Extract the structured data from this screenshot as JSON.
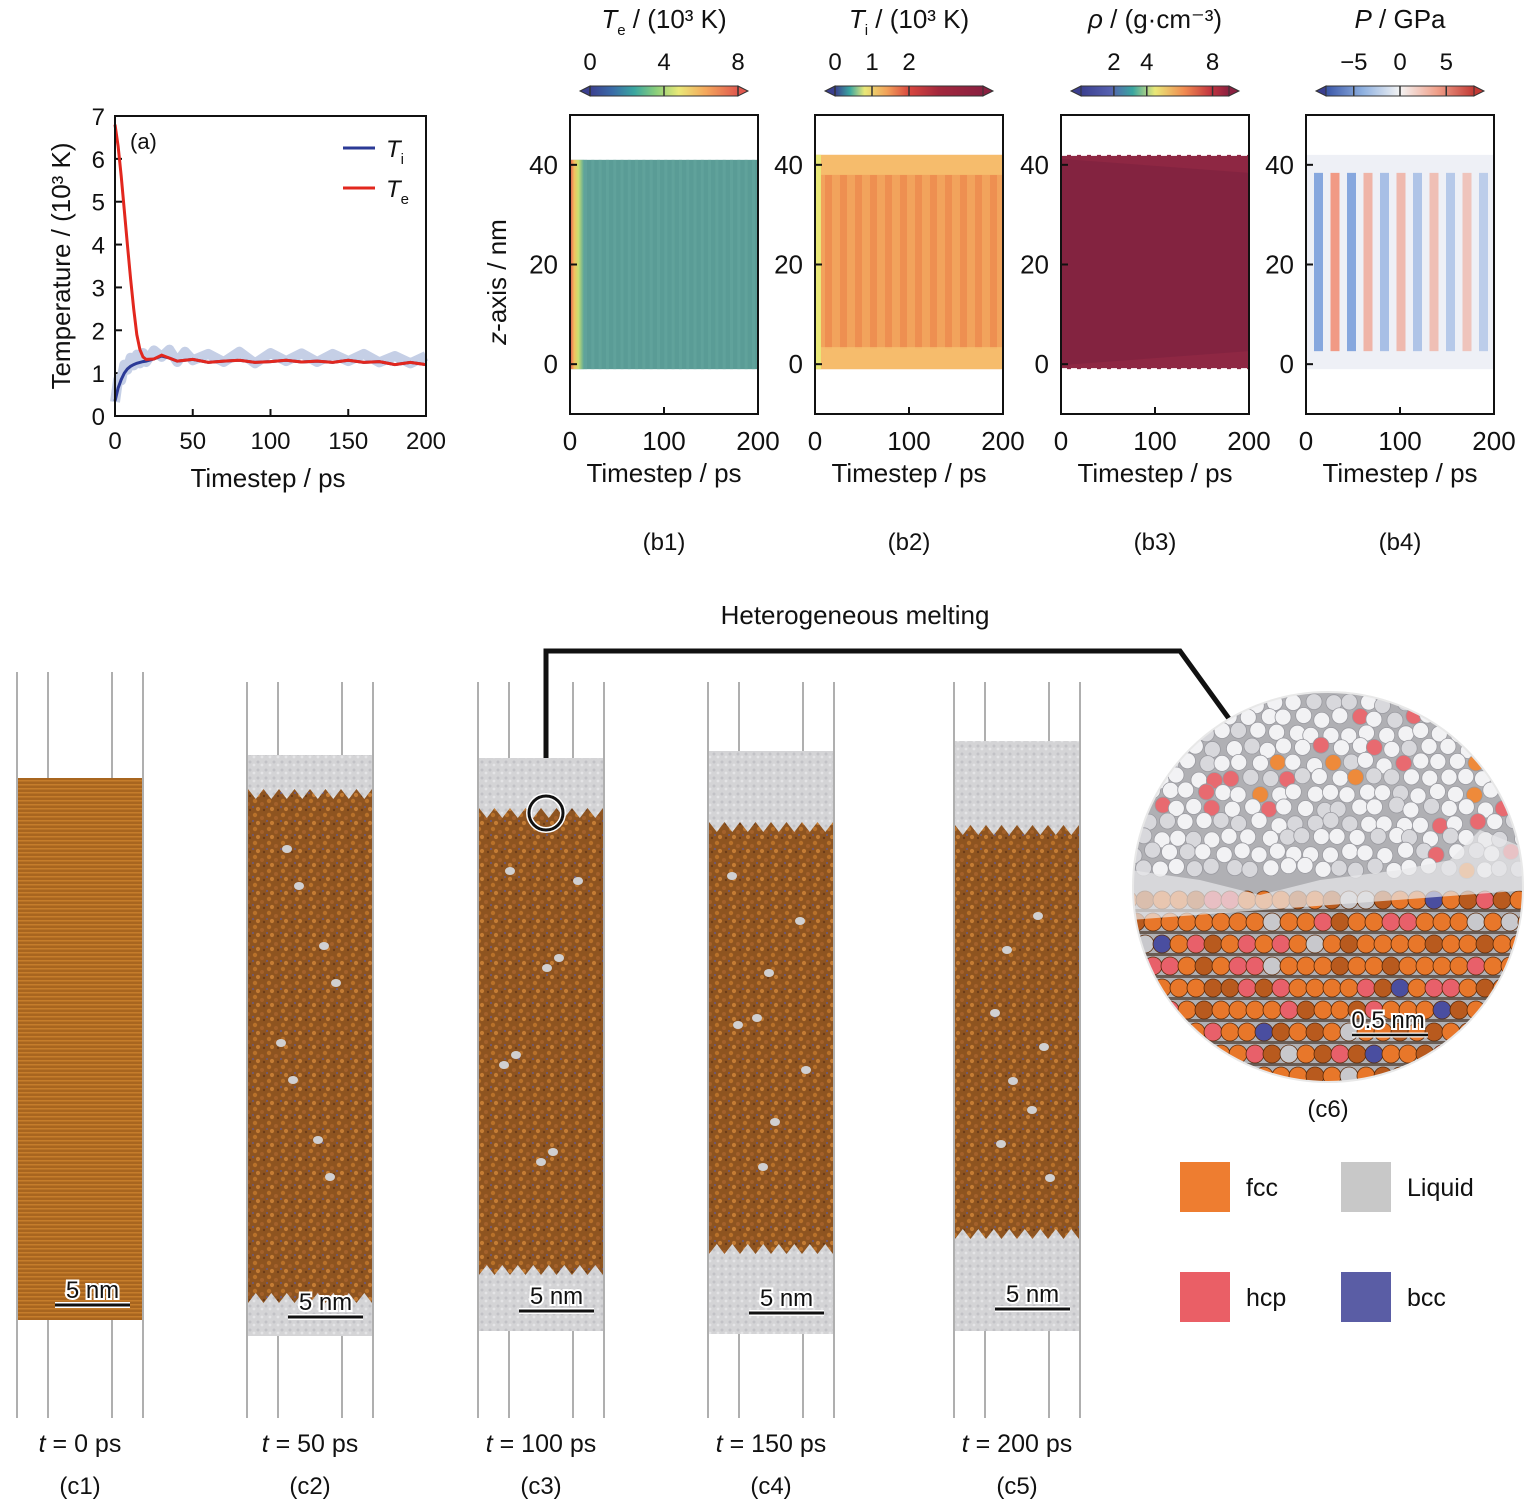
{
  "panel_a": {
    "tag": "(a)",
    "ylabel": "Temperature / (10³ K)",
    "xlabel": "Timestep / ps",
    "legend": [
      {
        "sym": "T",
        "sub": "i",
        "color": "#2b3a96"
      },
      {
        "sym": "T",
        "sub": "e",
        "color": "#e2271e"
      }
    ],
    "xticks": [
      "0",
      "50",
      "100",
      "150",
      "200"
    ],
    "yticks": [
      "0",
      "1",
      "2",
      "3",
      "4",
      "5",
      "6",
      "7"
    ]
  },
  "heatmaps": [
    {
      "tag": "(b1)",
      "title_sym": "T",
      "title_sub": "e",
      "title_rest": " / (10³ K)",
      "cbar_ticks": [
        "0",
        "4",
        "8"
      ],
      "cbar_range": [
        0,
        8
      ],
      "cbar_tick_values": [
        0,
        4,
        8
      ]
    },
    {
      "tag": "(b2)",
      "title_sym": "T",
      "title_sub": "i",
      "title_rest": " / (10³ K)",
      "cbar_ticks": [
        "0",
        "1",
        "2"
      ],
      "cbar_range": [
        0,
        4
      ],
      "cbar_tick_values": [
        0,
        1,
        2
      ]
    },
    {
      "tag": "(b3)",
      "title_sym": "ρ",
      "title_sub": "",
      "title_rest": " / (g·cm⁻³)",
      "cbar_ticks": [
        "2",
        "4",
        "8"
      ],
      "cbar_range": [
        0,
        9
      ],
      "cbar_tick_values": [
        2,
        4,
        8
      ]
    },
    {
      "tag": "(b4)",
      "title_sym": "P",
      "title_sub": "",
      "title_rest": " / GPa",
      "cbar_ticks": [
        "−5",
        "0",
        "5"
      ],
      "cbar_range": [
        -8,
        8
      ],
      "cbar_tick_values": [
        -5,
        0,
        5
      ]
    }
  ],
  "heatmap_axes": {
    "ylabel_italic": "z",
    "ylabel_rest": "-axis / nm",
    "xlabel": "Timestep / ps",
    "xticks": [
      "0",
      "100",
      "200"
    ],
    "yticks": [
      "0",
      "20",
      "40"
    ]
  },
  "chart_data": [
    {
      "type": "line",
      "xlabel": "Timestep / ps",
      "ylabel": "Temperature / (10³ K)",
      "xlim": [
        0,
        200
      ],
      "ylim": [
        0,
        7
      ],
      "legend": "top-right",
      "series": [
        {
          "name": "Ti",
          "x": [
            0,
            2,
            4,
            6,
            8,
            10,
            12,
            14,
            16,
            18,
            20,
            25,
            30,
            35,
            40,
            45,
            50,
            60,
            70,
            80,
            90,
            100,
            110,
            120,
            130,
            140,
            150,
            160,
            170,
            180,
            190,
            200
          ],
          "y": [
            0.35,
            0.65,
            0.85,
            1.0,
            1.1,
            1.16,
            1.2,
            1.23,
            1.25,
            1.27,
            1.28,
            1.33,
            1.4,
            1.35,
            1.28,
            1.3,
            1.32,
            1.25,
            1.28,
            1.3,
            1.25,
            1.27,
            1.3,
            1.26,
            1.28,
            1.25,
            1.3,
            1.25,
            1.27,
            1.2,
            1.25,
            1.2
          ]
        },
        {
          "name": "Te",
          "x": [
            0,
            2,
            4,
            6,
            8,
            10,
            12,
            14,
            16,
            18,
            20,
            25,
            30,
            35,
            40,
            45,
            50,
            60,
            70,
            80,
            90,
            100,
            110,
            120,
            130,
            140,
            150,
            160,
            170,
            180,
            190,
            200
          ],
          "y": [
            6.8,
            6.3,
            5.6,
            4.8,
            4.0,
            3.2,
            2.5,
            1.9,
            1.55,
            1.38,
            1.32,
            1.33,
            1.42,
            1.35,
            1.28,
            1.3,
            1.32,
            1.25,
            1.28,
            1.3,
            1.25,
            1.27,
            1.3,
            1.26,
            1.28,
            1.25,
            1.3,
            1.25,
            1.27,
            1.2,
            1.25,
            1.2
          ]
        }
      ]
    },
    {
      "type": "heatmap",
      "title": "Te / (10³ K)",
      "xlabel": "Timestep / ps",
      "ylabel": "z-axis / nm",
      "xlim": [
        0,
        200
      ],
      "ylim": [
        -10,
        50
      ],
      "sample_region": {
        "z_bottom": -1,
        "z_top": 41
      }
    },
    {
      "type": "heatmap",
      "title": "Ti / (10³ K)",
      "xlabel": "Timestep / ps",
      "ylabel": "z-axis / nm",
      "xlim": [
        0,
        200
      ],
      "ylim": [
        -10,
        50
      ],
      "sample_region": {
        "z_bottom": -1,
        "z_top": 42
      }
    },
    {
      "type": "heatmap",
      "title": "ρ / (g·cm⁻³)",
      "xlabel": "Timestep / ps",
      "ylabel": "z-axis / nm",
      "xlim": [
        0,
        200
      ],
      "ylim": [
        -10,
        50
      ],
      "sample_region": {
        "z_bottom": -1,
        "z_top": 42
      }
    },
    {
      "type": "heatmap",
      "title": "P / GPa",
      "xlabel": "Timestep / ps",
      "ylabel": "z-axis / nm",
      "xlim": [
        0,
        200
      ],
      "ylim": [
        -10,
        50
      ],
      "sample_region": {
        "z_bottom": -1,
        "z_top": 42
      }
    }
  ],
  "annotation": {
    "label": "Heterogeneous melting"
  },
  "snapshots": [
    {
      "time_sym": "t",
      "time_rest": " = 0 ps",
      "tag": "(c1)",
      "scale": "5 nm"
    },
    {
      "time_sym": "t",
      "time_rest": " = 50 ps",
      "tag": "(c2)",
      "scale": "5 nm"
    },
    {
      "time_sym": "t",
      "time_rest": " = 100 ps",
      "tag": "(c3)",
      "scale": "5 nm"
    },
    {
      "time_sym": "t",
      "time_rest": " = 150 ps",
      "tag": "(c4)",
      "scale": "5 nm"
    },
    {
      "time_sym": "t",
      "time_rest": " = 200 ps",
      "tag": "(c5)",
      "scale": "5 nm"
    }
  ],
  "zoom": {
    "tag": "(c6)",
    "scale": "0.5 nm"
  },
  "structure_legend": [
    {
      "label": "fcc",
      "color": "#ee7d30"
    },
    {
      "label": "Liquid",
      "color": "#c8c8c8"
    },
    {
      "label": "hcp",
      "color": "#ea5f66"
    },
    {
      "label": "bcc",
      "color": "#5a5da5"
    }
  ]
}
